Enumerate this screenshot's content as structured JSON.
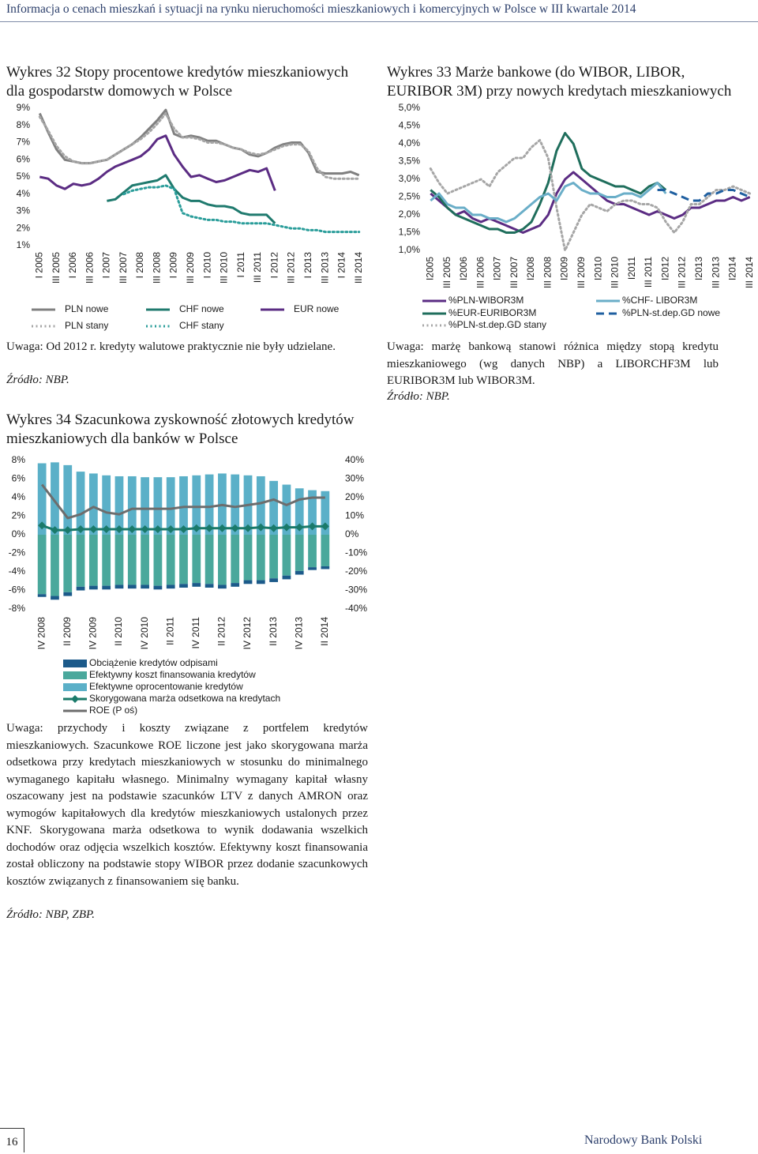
{
  "header": {
    "title": "Informacja o cenach mieszkań i sytuacji na rynku nieruchomości mieszkaniowych i komercyjnych w Polsce w III kwartale 2014"
  },
  "chart_data": [
    {
      "type": "line",
      "title": "Wykres 32 Stopy procentowe kredytów mieszkaniowych dla gospodarstw domowych w Polsce",
      "categories": [
        "I 2005",
        null,
        "III 2005",
        null,
        "I 2006",
        null,
        "III 2006",
        null,
        "I 2007",
        null,
        "III 2007",
        null,
        "I 2008",
        null,
        "III 2008",
        null,
        "I 2009",
        null,
        "III 2009",
        null,
        "I 2010",
        null,
        "III 2010",
        null,
        "I 2011",
        null,
        "III 2011",
        null,
        "I 2012",
        null,
        "III 2012",
        null,
        "I 2013",
        null,
        "III 2013",
        null,
        "I 2014",
        null,
        "III 2014"
      ],
      "ylim": [
        1,
        9
      ],
      "yticks": [
        {
          "value": 9,
          "label": "9%"
        },
        {
          "value": 8,
          "label": "8%"
        },
        {
          "value": 7,
          "label": "7%"
        },
        {
          "value": 6,
          "label": "6%"
        },
        {
          "value": 5,
          "label": "5%"
        },
        {
          "value": 4,
          "label": "4%"
        },
        {
          "value": 3,
          "label": "3%"
        },
        {
          "value": 2,
          "label": "2%"
        },
        {
          "value": 1,
          "label": "1%"
        }
      ],
      "grid": false,
      "series": [
        {
          "name": "PLN nowe",
          "color": "#808080",
          "style": "solid",
          "values": [
            8.7,
            7.6,
            6.6,
            6.0,
            5.9,
            5.8,
            5.8,
            5.9,
            6.0,
            6.3,
            6.6,
            6.9,
            7.3,
            7.8,
            8.3,
            8.9,
            7.5,
            7.3,
            7.4,
            7.3,
            7.1,
            7.1,
            6.9,
            6.7,
            6.6,
            6.3,
            6.2,
            6.4,
            6.7,
            6.9,
            7.0,
            7.0,
            6.4,
            5.3,
            5.2,
            5.2,
            5.2,
            5.3,
            5.1
          ]
        },
        {
          "name": "PLN stany",
          "color": "#a6a6a6",
          "style": "dotted",
          "values": [
            8.5,
            7.7,
            6.8,
            6.2,
            5.9,
            5.8,
            5.8,
            5.9,
            6.0,
            6.3,
            6.6,
            6.9,
            7.2,
            7.6,
            8.1,
            8.7,
            7.8,
            7.3,
            7.3,
            7.2,
            7.0,
            7.0,
            6.9,
            6.7,
            6.6,
            6.4,
            6.3,
            6.4,
            6.6,
            6.8,
            6.9,
            6.9,
            6.5,
            5.5,
            5.0,
            4.9,
            4.9,
            4.9,
            4.9
          ]
        },
        {
          "name": "CHF nowe",
          "color": "#1f7a6e",
          "style": "solid",
          "values": [
            null,
            null,
            null,
            null,
            null,
            null,
            null,
            null,
            3.6,
            3.7,
            4.1,
            4.5,
            4.6,
            4.7,
            4.8,
            5.1,
            4.3,
            3.8,
            3.6,
            3.6,
            3.4,
            3.3,
            3.3,
            3.2,
            2.9,
            2.8,
            2.8,
            2.8,
            2.3,
            null,
            null,
            null,
            null,
            null,
            null,
            null,
            null,
            null,
            null
          ]
        },
        {
          "name": "CHF stany",
          "color": "#2a9d9a",
          "style": "dotted",
          "values": [
            null,
            null,
            null,
            null,
            null,
            null,
            null,
            null,
            null,
            null,
            4.0,
            4.2,
            4.3,
            4.4,
            4.4,
            4.5,
            4.3,
            2.9,
            2.7,
            2.6,
            2.5,
            2.5,
            2.4,
            2.4,
            2.3,
            2.3,
            2.3,
            2.3,
            2.2,
            2.1,
            2.0,
            2.0,
            1.9,
            1.9,
            1.8,
            1.8,
            1.8,
            1.8,
            1.8
          ]
        },
        {
          "name": "EUR nowe",
          "color": "#5b2c83",
          "style": "solid",
          "values": [
            5.0,
            4.9,
            4.5,
            4.3,
            4.6,
            4.5,
            4.6,
            4.9,
            5.3,
            5.6,
            5.8,
            6.0,
            6.2,
            6.6,
            7.2,
            7.4,
            6.3,
            5.6,
            5.0,
            5.1,
            4.9,
            4.7,
            4.8,
            5.0,
            5.2,
            5.4,
            5.3,
            5.5,
            4.2,
            null,
            null,
            null,
            null,
            null,
            null,
            null,
            null,
            null,
            null
          ]
        }
      ],
      "note": "Uwaga: Od 2012 r. kredyty walutowe praktycznie nie były udzielane.",
      "source": "Źródło: NBP."
    },
    {
      "type": "line",
      "title": "Wykres 33 Marże bankowe (do WIBOR, LIBOR, EURIBOR 3M) przy nowych kredytach mieszkaniowych",
      "categories": [
        "I2005",
        null,
        "III 2005",
        null,
        "I2006",
        null,
        "III 2006",
        null,
        "I2007",
        null,
        "III 2007",
        null,
        "I2008",
        null,
        "III 2008",
        null,
        "I2009",
        null,
        "III 2009",
        null,
        "I2010",
        null,
        "III 2010",
        null,
        "I2011",
        null,
        "III 2011",
        null,
        "I2012",
        null,
        "III 2012",
        null,
        "I2013",
        null,
        "III 2013",
        null,
        "I2014",
        null,
        "III 2014"
      ],
      "ylim": [
        1,
        5
      ],
      "yticks": [
        {
          "value": 5,
          "label": "5,0%"
        },
        {
          "value": 4.5,
          "label": "4,5%"
        },
        {
          "value": 4,
          "label": "4,0%"
        },
        {
          "value": 3.5,
          "label": "3,5%"
        },
        {
          "value": 3,
          "label": "3,0%"
        },
        {
          "value": 2.5,
          "label": "2,5%"
        },
        {
          "value": 2,
          "label": "2,0%"
        },
        {
          "value": 1.5,
          "label": "1,5%"
        },
        {
          "value": 1,
          "label": "1,0%"
        }
      ],
      "grid": false,
      "series": [
        {
          "name": "%PLN-WIBOR3M",
          "color": "#5b2c83",
          "style": "solid",
          "values": [
            2.6,
            2.4,
            2.2,
            2.0,
            2.1,
            1.9,
            1.8,
            1.9,
            1.8,
            1.7,
            1.6,
            1.5,
            1.6,
            1.7,
            2.0,
            2.6,
            3.0,
            3.2,
            3.0,
            2.8,
            2.6,
            2.4,
            2.3,
            2.3,
            2.2,
            2.1,
            2.0,
            2.1,
            2.0,
            1.9,
            2.0,
            2.2,
            2.2,
            2.3,
            2.4,
            2.4,
            2.5,
            2.4,
            2.5
          ]
        },
        {
          "name": "%EUR-EURIBOR3M",
          "color": "#1f6e5c",
          "style": "solid",
          "values": [
            2.7,
            2.5,
            2.2,
            2.0,
            1.9,
            1.8,
            1.7,
            1.6,
            1.6,
            1.5,
            1.5,
            1.6,
            1.8,
            2.3,
            2.9,
            3.8,
            4.3,
            4.0,
            3.3,
            3.1,
            3.0,
            2.9,
            2.8,
            2.8,
            2.7,
            2.6,
            2.8,
            2.9,
            2.7,
            null,
            null,
            null,
            null,
            null,
            null,
            null,
            null,
            null,
            null
          ]
        },
        {
          "name": "%PLN-st.dep.GD stany",
          "color": "#a6a6a6",
          "style": "dotted",
          "values": [
            3.3,
            2.9,
            2.6,
            2.7,
            2.8,
            2.9,
            3.0,
            2.8,
            3.2,
            3.4,
            3.6,
            3.6,
            3.9,
            4.1,
            3.6,
            2.2,
            1.0,
            1.5,
            2.0,
            2.3,
            2.2,
            2.1,
            2.3,
            2.4,
            2.4,
            2.3,
            2.3,
            2.2,
            1.8,
            1.5,
            1.8,
            2.3,
            2.3,
            2.5,
            2.7,
            2.7,
            2.8,
            2.7,
            2.6
          ]
        },
        {
          "name": "%CHF- LIBOR3M",
          "color": "#6aaec8",
          "style": "solid",
          "values": [
            2.4,
            2.6,
            2.3,
            2.2,
            2.2,
            2.0,
            2.0,
            1.9,
            1.9,
            1.8,
            1.9,
            2.1,
            2.3,
            2.5,
            2.6,
            2.4,
            2.8,
            2.9,
            2.7,
            2.6,
            2.6,
            2.5,
            2.5,
            2.6,
            2.6,
            2.5,
            2.7,
            2.9,
            2.6,
            null,
            null,
            null,
            null,
            null,
            null,
            null,
            null,
            null,
            null
          ]
        },
        {
          "name": "%PLN-st.dep.GD nowe",
          "color": "#1f5fa0",
          "style": "dashed",
          "values": [
            null,
            null,
            null,
            null,
            null,
            null,
            null,
            null,
            null,
            null,
            null,
            null,
            null,
            null,
            null,
            null,
            null,
            null,
            null,
            null,
            null,
            null,
            null,
            null,
            null,
            null,
            null,
            2.7,
            2.7,
            2.6,
            2.5,
            2.4,
            2.4,
            2.6,
            2.6,
            2.7,
            2.7,
            2.6,
            2.5
          ]
        }
      ],
      "note": "Uwaga: marżę bankową stanowi różnica między stopą kredytu mieszkaniowego (wg danych NBP) a LIBORCHF3M lub EURIBOR3M lub WIBOR3M.",
      "source": "Źródło: NBP."
    },
    {
      "type": "bar",
      "title": "Wykres 34 Szacunkowa zyskowność złotowych kredytów mieszkaniowych dla banków w Polsce",
      "categories": [
        "IV 2008",
        null,
        "II 2009",
        null,
        "IV 2009",
        null,
        "II 2010",
        null,
        "IV 2010",
        null,
        "II 2011",
        null,
        "IV 2011",
        null,
        "II 2012",
        null,
        "IV 2012",
        null,
        "II 2013",
        null,
        "IV 2013",
        null,
        "II 2014"
      ],
      "ylim": [
        -8,
        8
      ],
      "yticks": [
        {
          "value": 8,
          "label": "8%"
        },
        {
          "value": 6,
          "label": "6%"
        },
        {
          "value": 4,
          "label": "4%"
        },
        {
          "value": 2,
          "label": "2%"
        },
        {
          "value": 0,
          "label": "0%"
        },
        {
          "value": -2,
          "label": "-2%"
        },
        {
          "value": -4,
          "label": "-4%"
        },
        {
          "value": -6,
          "label": "-6%"
        },
        {
          "value": -8,
          "label": "-8%"
        }
      ],
      "y2lim": [
        -40,
        40
      ],
      "y2ticks": [
        {
          "value": 40,
          "label": "40%"
        },
        {
          "value": 30,
          "label": "30%"
        },
        {
          "value": 20,
          "label": "20%"
        },
        {
          "value": 10,
          "label": "10%"
        },
        {
          "value": 0,
          "label": "0%"
        },
        {
          "value": -10,
          "label": "-10%"
        },
        {
          "value": -20,
          "label": "-20%"
        },
        {
          "value": -30,
          "label": "-30%"
        },
        {
          "value": -40,
          "label": "-40%"
        }
      ],
      "grid": false,
      "series": [
        {
          "name": "Obciążenie kredytów odpisami",
          "type": "bar",
          "color": "#1c5a8a",
          "values": [
            -0.3,
            -0.4,
            -0.4,
            -0.4,
            -0.4,
            -0.4,
            -0.4,
            -0.4,
            -0.4,
            -0.4,
            -0.4,
            -0.4,
            -0.4,
            -0.4,
            -0.4,
            -0.4,
            -0.4,
            -0.4,
            -0.4,
            -0.4,
            -0.4,
            -0.3,
            -0.3
          ]
        },
        {
          "name": "Efektywny koszt finansowania kredytów",
          "type": "bar",
          "color": "#4aa89c",
          "values": [
            -6.4,
            -6.6,
            -6.2,
            -5.6,
            -5.5,
            -5.5,
            -5.4,
            -5.4,
            -5.4,
            -5.5,
            -5.4,
            -5.3,
            -5.2,
            -5.3,
            -5.4,
            -5.2,
            -4.9,
            -4.9,
            -4.7,
            -4.4,
            -3.9,
            -3.5,
            -3.4
          ]
        },
        {
          "name": "Efektywne oprocentowanie kredytów",
          "type": "bar",
          "color": "#5bb0c8",
          "values": [
            7.7,
            7.8,
            7.5,
            6.8,
            6.6,
            6.4,
            6.3,
            6.3,
            6.2,
            6.2,
            6.2,
            6.3,
            6.4,
            6.5,
            6.6,
            6.5,
            6.4,
            6.3,
            5.8,
            5.4,
            5.0,
            4.8,
            4.7
          ]
        },
        {
          "name": "Skorygowana marża odsetkowa na kredytach",
          "type": "line",
          "marker": "diamond",
          "color": "#1a7a6a",
          "values": [
            1.0,
            0.5,
            0.5,
            0.6,
            0.6,
            0.6,
            0.6,
            0.6,
            0.6,
            0.6,
            0.6,
            0.6,
            0.7,
            0.7,
            0.7,
            0.7,
            0.7,
            0.8,
            0.7,
            0.8,
            0.8,
            0.9,
            0.9
          ]
        },
        {
          "name": "ROE (P oś)",
          "type": "line",
          "axis": "y2",
          "color": "#6d6d6d",
          "values": [
            27,
            18,
            9,
            11,
            15,
            12,
            11,
            14,
            14,
            14,
            14,
            15,
            15,
            15,
            16,
            15,
            16,
            17,
            19,
            16,
            19,
            20,
            20
          ]
        }
      ],
      "note": "Uwaga: przychody i koszty związane z portfelem kredytów mieszkaniowych. Szacunkowe ROE liczone jest jako skorygowana marża odsetkowa przy kredytach mieszkaniowych w stosunku do minimalnego wymaganego kapitału własnego. Minimalny wymagany kapitał własny oszacowany jest na podstawie szacunków LTV z danych AMRON oraz wymogów kapitałowych dla kredytów mieszkaniowych ustalonych przez KNF. Skorygowana marża odsetkowa to wynik dodawania wszelkich dochodów oraz odjęcia wszelkich kosztów. Efektywny koszt finansowania został obliczony na podstawie stopy WIBOR przez dodanie szacunkowych kosztów związanych z finansowaniem się banku.",
      "source": "Źródło: NBP, ZBP."
    }
  ],
  "footer": {
    "page": "16",
    "publisher": "Narodowy Bank Polski"
  }
}
